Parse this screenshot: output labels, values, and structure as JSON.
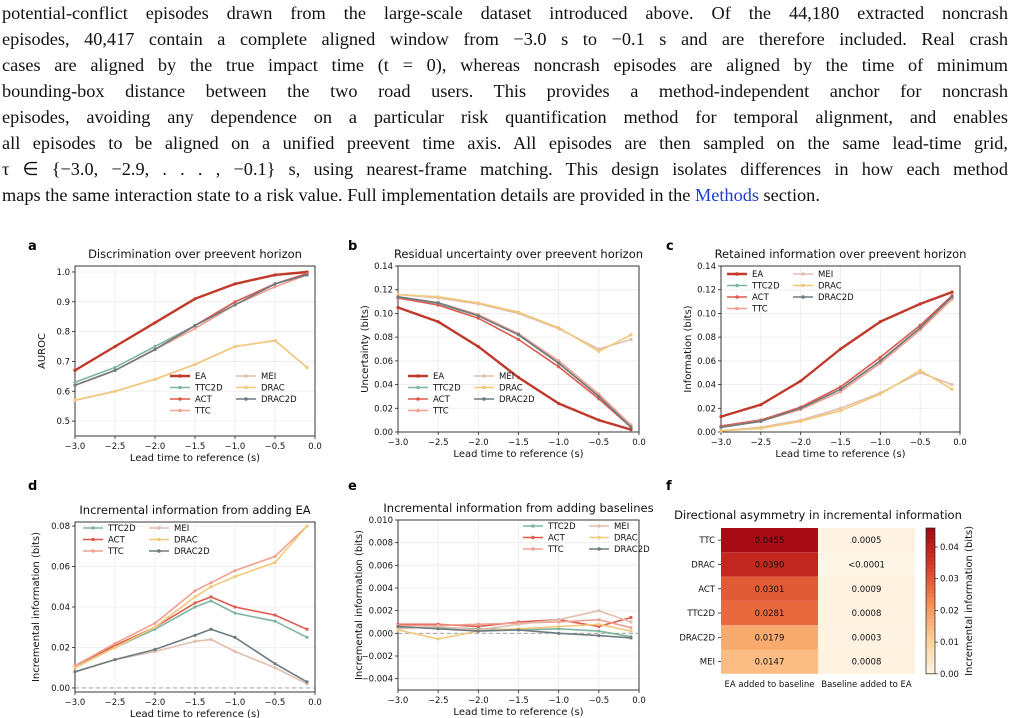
{
  "paragraph": {
    "lines": [
      "potential-conflict episodes drawn from the large-scale dataset introduced above. Of the 44,180 extracted noncrash",
      "episodes, 40,417 contain a complete aligned window from −3.0 s to −0.1 s and are therefore included. Real crash",
      "cases are aligned by the true impact time (t = 0), whereas noncrash episodes are aligned by the time of minimum",
      "bounding-box distance between the two road users.  This provides a method-independent anchor for noncrash",
      "episodes, avoiding any dependence on a particular risk quantification method for temporal alignment, and enables",
      "all episodes to be aligned on a unified preevent time axis. All episodes are then sampled on the same lead-time grid,",
      "τ ∈ {−3.0, −2.9, . . . , −0.1} s, using nearest-frame matching. This design isolates differences in how each method"
    ],
    "last_line_prefix": "maps the same interaction state to a risk value. Full implementation details are provided in the ",
    "link_text": "Methods",
    "last_line_suffix": " section."
  },
  "colors": {
    "EA": "#c0392b",
    "TTC2D": "#7fb5a0",
    "ACT": "#e05a4e",
    "TTC": "#f0a090",
    "MEI": "#e0bfae",
    "DRAC": "#f2c879",
    "DRAC2D": "#6e7b80"
  },
  "panels": [
    {
      "label": "a",
      "title": "Discrimination over preevent horizon",
      "ylabel": "AUROC",
      "xlabel": "Lead time to reference (s)",
      "x_ticks": [
        "−3.0",
        "−2.5",
        "−2.0",
        "−1.5",
        "−1.0",
        "−0.5",
        "0.0"
      ],
      "y_ticks": [
        "0.5",
        "0.6",
        "0.7",
        "0.8",
        "0.9",
        "1.0"
      ],
      "legend": [
        "EA",
        "MEI",
        "TTC2D",
        "DRAC",
        "ACT",
        "DRAC2D",
        "TTC"
      ]
    },
    {
      "label": "b",
      "title": "Residual uncertainty over preevent horizon",
      "ylabel": "Uncertainty (bits)",
      "xlabel": "Lead time to reference (s)",
      "x_ticks": [
        "−3.0",
        "−2.5",
        "−2.0",
        "−1.5",
        "−1.0",
        "−0.5",
        "0.0"
      ],
      "y_ticks": [
        "0.00",
        "0.02",
        "0.04",
        "0.06",
        "0.08",
        "0.10",
        "0.12",
        "0.14"
      ],
      "legend": [
        "EA",
        "MEI",
        "TTC2D",
        "DRAC",
        "ACT",
        "DRAC2D",
        "TTC"
      ]
    },
    {
      "label": "c",
      "title": "Retained information over preevent horizon",
      "ylabel": "Information (bits)",
      "xlabel": "Lead time to reference (s)",
      "x_ticks": [
        "−3.0",
        "−2.5",
        "−2.0",
        "−1.5",
        "−1.0",
        "−0.5",
        "0.0"
      ],
      "y_ticks": [
        "0.00",
        "0.02",
        "0.04",
        "0.06",
        "0.08",
        "0.10",
        "0.12",
        "0.14"
      ],
      "legend": [
        "EA",
        "MEI",
        "TTC2D",
        "DRAC",
        "ACT",
        "DRAC2D",
        "TTC"
      ]
    },
    {
      "label": "d",
      "title": "Incremental information from adding EA",
      "ylabel": "Incremental information (bits)",
      "xlabel": "Lead time to reference (s)",
      "x_ticks": [
        "−3.0",
        "−2.5",
        "−2.0",
        "−1.5",
        "−1.0",
        "−0.5",
        "0.0"
      ],
      "y_ticks": [
        "0.00",
        "0.02",
        "0.04",
        "0.06",
        "0.08"
      ],
      "legend": [
        "TTC2D",
        "MEI",
        "ACT",
        "DRAC",
        "TTC",
        "DRAC2D"
      ]
    },
    {
      "label": "e",
      "title": "Incremental information from adding baselines",
      "ylabel": "Incremental information (bits)",
      "xlabel": "Lead time to reference (s)",
      "x_ticks": [
        "−3.0",
        "−2.5",
        "−2.0",
        "−1.5",
        "−1.0",
        "−0.5",
        "0.0"
      ],
      "y_ticks": [
        "−0.004",
        "−0.002",
        "0.000",
        "0.002",
        "0.004",
        "0.006",
        "0.008",
        "0.010"
      ],
      "legend": [
        "TTC2D",
        "MEI",
        "ACT",
        "DRAC",
        "TTC",
        "DRAC2D"
      ]
    }
  ],
  "heatmap": {
    "label": "f",
    "title": "Directional asymmetry in incremental information",
    "rows": [
      "TTC",
      "DRAC",
      "ACT",
      "TTC2D",
      "DRAC2D",
      "MEI"
    ],
    "columns": [
      "EA added to baseline",
      "Baseline added to EA"
    ],
    "cells": [
      [
        "0.0455",
        "0.0005"
      ],
      [
        "0.0390",
        "<0.0001"
      ],
      [
        "0.0301",
        "0.0009"
      ],
      [
        "0.0281",
        "0.0008"
      ],
      [
        "0.0179",
        "0.0003"
      ],
      [
        "0.0147",
        "0.0008"
      ]
    ],
    "colorbar_label": "Incremental information (bits)",
    "colorbar_ticks": [
      "0.00",
      "0.01",
      "0.02",
      "0.03",
      "0.04"
    ]
  },
  "chart_data": [
    {
      "type": "line",
      "title": "Discrimination over preevent horizon",
      "xlabel": "Lead time to reference (s)",
      "ylabel": "AUROC",
      "xlim": [
        -3.0,
        0.0
      ],
      "ylim": [
        0.45,
        1.02
      ],
      "x": [
        -3.0,
        -2.5,
        -2.0,
        -1.5,
        -1.0,
        -0.5,
        -0.1
      ],
      "series": [
        {
          "name": "EA",
          "values": [
            0.67,
            0.75,
            0.83,
            0.91,
            0.96,
            0.99,
            1.0
          ]
        },
        {
          "name": "TTC2D",
          "values": [
            0.63,
            0.68,
            0.75,
            0.82,
            0.9,
            0.96,
            0.995
          ]
        },
        {
          "name": "ACT",
          "values": [
            0.62,
            0.67,
            0.74,
            0.82,
            0.9,
            0.96,
            0.995
          ]
        },
        {
          "name": "TTC",
          "values": [
            0.62,
            0.67,
            0.74,
            0.81,
            0.89,
            0.95,
            0.99
          ]
        },
        {
          "name": "MEI",
          "values": [
            0.57,
            0.6,
            0.64,
            0.69,
            0.75,
            0.77,
            0.68
          ]
        },
        {
          "name": "DRAC",
          "values": [
            0.57,
            0.6,
            0.64,
            0.69,
            0.75,
            0.77,
            0.68
          ]
        },
        {
          "name": "DRAC2D",
          "values": [
            0.62,
            0.67,
            0.74,
            0.82,
            0.89,
            0.96,
            0.99
          ]
        }
      ]
    },
    {
      "type": "line",
      "title": "Residual uncertainty over preevent horizon",
      "xlabel": "Lead time to reference (s)",
      "ylabel": "Uncertainty (bits)",
      "xlim": [
        -3.0,
        0.0
      ],
      "ylim": [
        0.0,
        0.14
      ],
      "x": [
        -3.0,
        -2.5,
        -2.0,
        -1.5,
        -1.0,
        -0.5,
        -0.1
      ],
      "series": [
        {
          "name": "EA",
          "values": [
            0.105,
            0.093,
            0.072,
            0.046,
            0.024,
            0.01,
            0.002
          ]
        },
        {
          "name": "TTC2D",
          "values": [
            0.113,
            0.108,
            0.098,
            0.082,
            0.058,
            0.03,
            0.005
          ]
        },
        {
          "name": "ACT",
          "values": [
            0.113,
            0.107,
            0.096,
            0.078,
            0.055,
            0.028,
            0.004
          ]
        },
        {
          "name": "TTC",
          "values": [
            0.114,
            0.109,
            0.099,
            0.083,
            0.06,
            0.032,
            0.006
          ]
        },
        {
          "name": "MEI",
          "values": [
            0.116,
            0.113,
            0.108,
            0.1,
            0.087,
            0.07,
            0.078
          ]
        },
        {
          "name": "DRAC",
          "values": [
            0.116,
            0.114,
            0.109,
            0.101,
            0.088,
            0.068,
            0.082
          ]
        },
        {
          "name": "DRAC2D",
          "values": [
            0.114,
            0.109,
            0.098,
            0.082,
            0.058,
            0.03,
            0.004
          ]
        }
      ]
    },
    {
      "type": "line",
      "title": "Retained information over preevent horizon",
      "xlabel": "Lead time to reference (s)",
      "ylabel": "Information (bits)",
      "xlim": [
        -3.0,
        0.0
      ],
      "ylim": [
        0.0,
        0.14
      ],
      "x": [
        -3.0,
        -2.5,
        -2.0,
        -1.5,
        -1.0,
        -0.5,
        -0.1
      ],
      "series": [
        {
          "name": "EA",
          "values": [
            0.013,
            0.023,
            0.043,
            0.07,
            0.093,
            0.108,
            0.118
          ]
        },
        {
          "name": "TTC2D",
          "values": [
            0.005,
            0.01,
            0.02,
            0.036,
            0.06,
            0.088,
            0.114
          ]
        },
        {
          "name": "ACT",
          "values": [
            0.005,
            0.01,
            0.021,
            0.038,
            0.063,
            0.09,
            0.115
          ]
        },
        {
          "name": "TTC",
          "values": [
            0.004,
            0.009,
            0.019,
            0.034,
            0.058,
            0.086,
            0.112
          ]
        },
        {
          "name": "MEI",
          "values": [
            0.001,
            0.004,
            0.01,
            0.02,
            0.033,
            0.05,
            0.04
          ]
        },
        {
          "name": "DRAC",
          "values": [
            0.001,
            0.003,
            0.009,
            0.018,
            0.032,
            0.052,
            0.036
          ]
        },
        {
          "name": "DRAC2D",
          "values": [
            0.004,
            0.009,
            0.02,
            0.036,
            0.06,
            0.088,
            0.114
          ]
        }
      ]
    },
    {
      "type": "line",
      "title": "Incremental information from adding EA",
      "xlabel": "Lead time to reference (s)",
      "ylabel": "Incremental information (bits)",
      "xlim": [
        -3.0,
        0.0
      ],
      "ylim": [
        -0.002,
        0.082
      ],
      "x": [
        -3.0,
        -2.5,
        -2.0,
        -1.5,
        -1.3,
        -1.0,
        -0.5,
        -0.1
      ],
      "series": [
        {
          "name": "TTC2D",
          "values": [
            0.01,
            0.02,
            0.029,
            0.04,
            0.043,
            0.037,
            0.033,
            0.025
          ]
        },
        {
          "name": "ACT",
          "values": [
            0.011,
            0.021,
            0.03,
            0.042,
            0.045,
            0.04,
            0.036,
            0.029
          ]
        },
        {
          "name": "TTC",
          "values": [
            0.011,
            0.022,
            0.032,
            0.048,
            0.052,
            0.058,
            0.065,
            0.08
          ]
        },
        {
          "name": "MEI",
          "values": [
            0.008,
            0.014,
            0.018,
            0.023,
            0.024,
            0.018,
            0.01,
            0.002
          ]
        },
        {
          "name": "DRAC",
          "values": [
            0.01,
            0.02,
            0.03,
            0.045,
            0.05,
            0.055,
            0.062,
            0.08
          ]
        },
        {
          "name": "DRAC2D",
          "values": [
            0.008,
            0.014,
            0.019,
            0.026,
            0.029,
            0.025,
            0.012,
            0.003
          ]
        }
      ]
    },
    {
      "type": "line",
      "title": "Incremental information from adding baselines",
      "xlabel": "Lead time to reference (s)",
      "ylabel": "Incremental information (bits)",
      "xlim": [
        -3.0,
        0.0
      ],
      "ylim": [
        -0.005,
        0.01
      ],
      "x": [
        -3.0,
        -2.5,
        -2.0,
        -1.5,
        -1.0,
        -0.5,
        -0.1
      ],
      "series": [
        {
          "name": "TTC2D",
          "values": [
            0.0005,
            0.0005,
            0.0004,
            0.0003,
            0.0004,
            0.0002,
            -0.0003
          ]
        },
        {
          "name": "ACT",
          "values": [
            0.0008,
            0.0008,
            0.0006,
            0.001,
            0.0012,
            0.0006,
            0.0014
          ]
        },
        {
          "name": "TTC",
          "values": [
            0.0007,
            0.0007,
            0.0008,
            0.0009,
            0.001,
            0.0012,
            0.0005
          ]
        },
        {
          "name": "MEI",
          "values": [
            0.0004,
            0.0006,
            0.0003,
            0.0008,
            0.0012,
            0.002,
            0.001
          ]
        },
        {
          "name": "DRAC",
          "values": [
            0.0003,
            -0.0005,
            0.0002,
            0.0004,
            0.0006,
            0.0008,
            0.0002
          ]
        },
        {
          "name": "DRAC2D",
          "values": [
            0.0006,
            0.0004,
            0.0002,
            0.0003,
            0.0,
            -0.0002,
            -0.0004
          ]
        }
      ]
    },
    {
      "type": "heatmap",
      "title": "Directional asymmetry in incremental information",
      "rows": [
        "TTC",
        "DRAC",
        "ACT",
        "TTC2D",
        "DRAC2D",
        "MEI"
      ],
      "columns": [
        "EA added to baseline",
        "Baseline added to EA"
      ],
      "values": [
        [
          0.0455,
          0.0005
        ],
        [
          0.039,
          5e-05
        ],
        [
          0.0301,
          0.0009
        ],
        [
          0.0281,
          0.0008
        ],
        [
          0.0179,
          0.0003
        ],
        [
          0.0147,
          0.0008
        ]
      ],
      "colorbar_range": [
        0.0,
        0.046
      ]
    }
  ]
}
